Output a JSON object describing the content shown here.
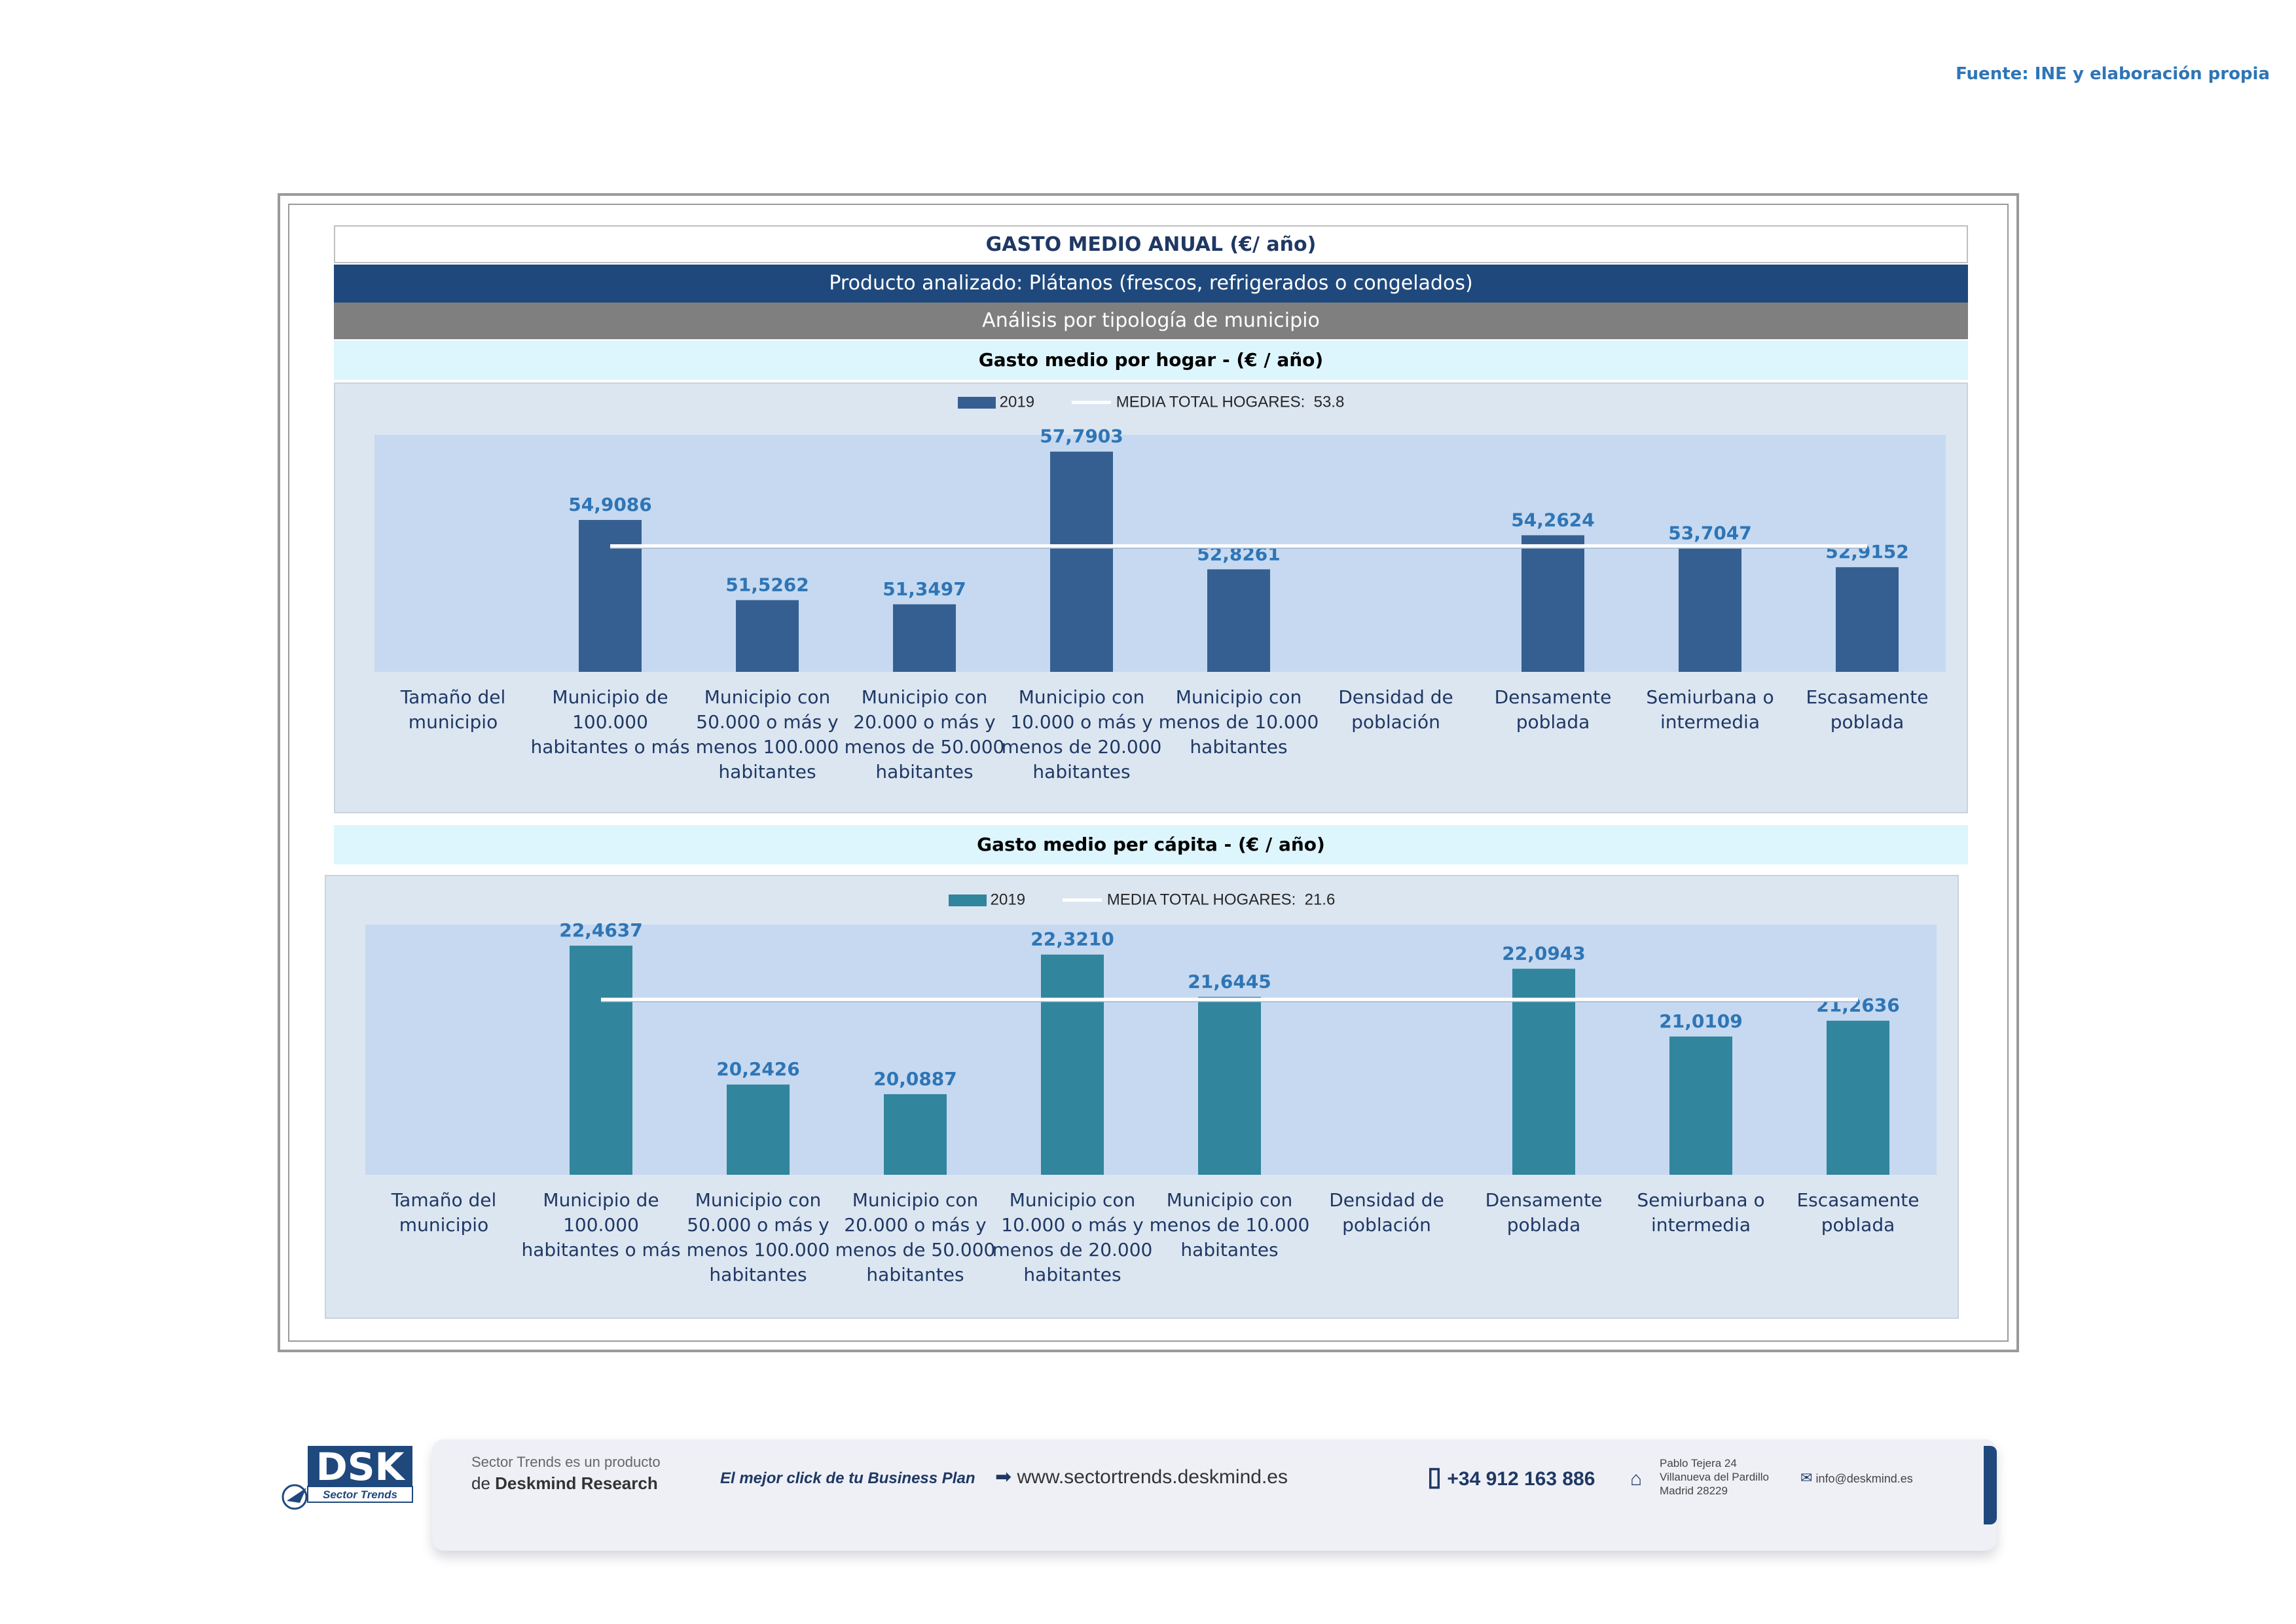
{
  "source": "Fuente: INE y elaboración propia",
  "header": {
    "title": "GASTO MEDIO ANUAL (€/ año)",
    "product": "Producto analizado: Plátanos (frescos, refrigerados o congelados)",
    "analysis": "Análisis por tipología de municipio"
  },
  "colors": {
    "hogar_bar": "#365f91",
    "capita_bar": "#31859c",
    "plot_bg": "#c6d9f0",
    "panel_bg": "#dce6f1",
    "label_blue": "#2e75b6",
    "header_blue": "#1f497d"
  },
  "chart_data": [
    {
      "type": "bar",
      "title": "Gasto medio por hogar -  (€ / año)",
      "categories": [
        "Tamaño del municipio",
        "Municipio de 100.000 habitantes o más",
        "Municipio con 50.000 o más y menos 100.000 habitantes",
        "Municipio con 20.000 o más y menos de 50.000 habitantes",
        "Municipio con 10.000 o más y menos de 20.000 habitantes",
        "Municipio con menos de 10.000 habitantes",
        "Densidad de población",
        "Densamente poblada",
        "Semiurbana o intermedia",
        "Escasamente poblada"
      ],
      "category_lines": [
        [
          "Tamaño del",
          "municipio"
        ],
        [
          "Municipio de",
          "100.000",
          "habitantes o más"
        ],
        [
          "Municipio con",
          "50.000 o más y",
          "menos 100.000",
          "habitantes"
        ],
        [
          "Municipio con",
          "20.000 o más y",
          "menos de 50.000",
          "habitantes"
        ],
        [
          "Municipio con",
          "10.000 o más y",
          "menos de 20.000",
          "habitantes"
        ],
        [
          "Municipio con",
          "menos de 10.000",
          "habitantes"
        ],
        [
          "Densidad de",
          "población"
        ],
        [
          "Densamente",
          "poblada"
        ],
        [
          "Semiurbana o",
          "intermedia"
        ],
        [
          "Escasamente",
          "poblada"
        ]
      ],
      "series": [
        {
          "name": "2019",
          "values": [
            null,
            54.9086,
            51.5262,
            51.3497,
            57.7903,
            52.8261,
            null,
            54.2624,
            53.7047,
            52.9152
          ],
          "labels": [
            "",
            "54,9086",
            "51,5262",
            "51,3497",
            "57,7903",
            "52,8261",
            "",
            "54,2624",
            "53,7047",
            "52,9152"
          ]
        }
      ],
      "reference_line": {
        "name": "MEDIA TOTAL  HOGARES:",
        "value": 53.8,
        "value_label": "53.8"
      },
      "ylim": [
        48.5,
        58.5
      ],
      "legend": "top-center"
    },
    {
      "type": "bar",
      "title": "Gasto medio per cápita -  (€ / año)",
      "categories": [
        "Tamaño del municipio",
        "Municipio de 100.000 habitantes o más",
        "Municipio con 50.000 o más y menos 100.000 habitantes",
        "Municipio con 20.000 o más y menos de 50.000 habitantes",
        "Municipio con 10.000 o más y menos de 20.000 habitantes",
        "Municipio con menos de 10.000 habitantes",
        "Densidad de población",
        "Densamente poblada",
        "Semiurbana o intermedia",
        "Escasamente poblada"
      ],
      "category_lines": [
        [
          "Tamaño del",
          "municipio"
        ],
        [
          "Municipio de",
          "100.000",
          "habitantes o más"
        ],
        [
          "Municipio con",
          "50.000 o más y",
          "menos 100.000",
          "habitantes"
        ],
        [
          "Municipio con",
          "20.000 o más y",
          "menos de 50.000",
          "habitantes"
        ],
        [
          "Municipio con",
          "10.000 o más y",
          "menos de 20.000",
          "habitantes"
        ],
        [
          "Municipio con",
          "menos de 10.000",
          "habitantes"
        ],
        [
          "Densidad de",
          "población"
        ],
        [
          "Densamente",
          "poblada"
        ],
        [
          "Semiurbana o",
          "intermedia"
        ],
        [
          "Escasamente",
          "poblada"
        ]
      ],
      "series": [
        {
          "name": "2019",
          "values": [
            null,
            22.4637,
            20.2426,
            20.0887,
            22.321,
            21.6445,
            null,
            22.0943,
            21.0109,
            21.2636
          ],
          "labels": [
            "",
            "22,4637",
            "20,2426",
            "20,0887",
            "22,3210",
            "21,6445",
            "",
            "22,0943",
            "21,0109",
            "21,2636"
          ]
        }
      ],
      "reference_line": {
        "name": "MEDIA TOTAL  HOGARES:",
        "value": 21.6,
        "value_label": "21.6"
      },
      "ylim": [
        18.8,
        22.8
      ],
      "legend": "top-center"
    }
  ],
  "footer": {
    "line1": "Sector Trends es un producto",
    "line2_prefix": "de ",
    "line2_brand": "Deskmind Research",
    "slogan": "El mejor click de tu Business Plan",
    "website": "www.sectortrends.deskmind.es",
    "phone": "+34 912 163 886",
    "address1": "Pablo Tejera 24",
    "address2": "Villanueva del Pardillo",
    "address3": "Madrid 28229",
    "email": "info@deskmind.es",
    "logo_text": "DSK",
    "logo_sub": "Sector Trends"
  }
}
